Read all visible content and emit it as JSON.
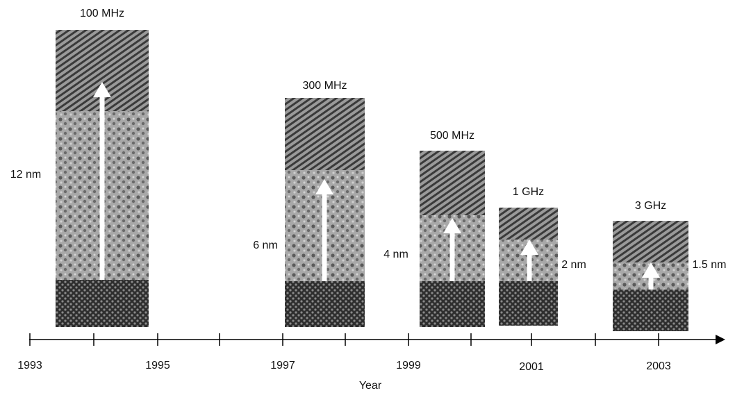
{
  "panels": [
    {
      "frequency": "100 MHz",
      "thickness": "12 nm"
    },
    {
      "frequency": "300 MHz",
      "thickness": "6 nm"
    },
    {
      "frequency": "500 MHz",
      "thickness": "4 nm"
    },
    {
      "frequency": "1 GHz",
      "thickness": "2 nm"
    },
    {
      "frequency": "3 GHz",
      "thickness": "1.5 nm"
    }
  ],
  "axis": {
    "label": "Year",
    "ticks": [
      "1993",
      "1995",
      "1997",
      "1999",
      "2001",
      "2003"
    ]
  }
}
